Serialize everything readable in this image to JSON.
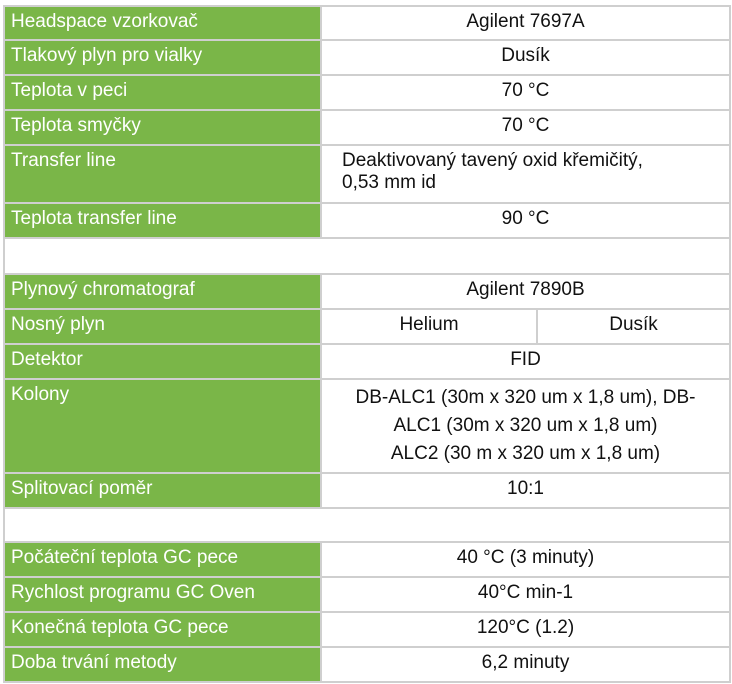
{
  "section1": [
    {
      "label": "Headspace vzorkovač",
      "value": "Agilent 7697A"
    },
    {
      "label": "Tlakový plyn pro vialky",
      "value": "Dusík"
    },
    {
      "label": "Teplota v peci",
      "value": "70 °C"
    },
    {
      "label": "Teplota smyčky",
      "value": "70 °C"
    },
    {
      "label": "Transfer line",
      "value_lines": [
        "Deaktivovaný tavený oxid křemičitý,",
        "0,53 mm id"
      ]
    },
    {
      "label": "Teplota transfer line",
      "value": "90 °C"
    }
  ],
  "section2": {
    "gc": {
      "label": "Plynový chromatograf",
      "value": "Agilent 7890B"
    },
    "carrier": {
      "label": "Nosný plyn",
      "value_a": "Helium",
      "value_b": "Dusík"
    },
    "detector": {
      "label": "Detektor",
      "value": "FID"
    },
    "columns": {
      "label": "Kolony",
      "value_lines": [
        "DB-ALC1 (30m x 320 um x 1,8 um), DB-",
        "ALC1 (30m x 320 um x 1,8 um)",
        "ALC2 (30 m x 320 um x 1,8 um)"
      ]
    },
    "split": {
      "label": "Splitovací poměr",
      "value": "10:1"
    }
  },
  "section3": [
    {
      "label": "Počáteční teplota GC pece",
      "value": "40 °C (3 minuty)"
    },
    {
      "label": "Rychlost programu GC Oven",
      "value": "40°C min-1"
    },
    {
      "label": "Konečná teplota GC pece",
      "value": "120°C (1.2)"
    },
    {
      "label": "Doba trvání metody",
      "value": "6,2 minuty"
    }
  ],
  "colors": {
    "label_bg": "#7ab648",
    "border": "#cfcfcf"
  }
}
